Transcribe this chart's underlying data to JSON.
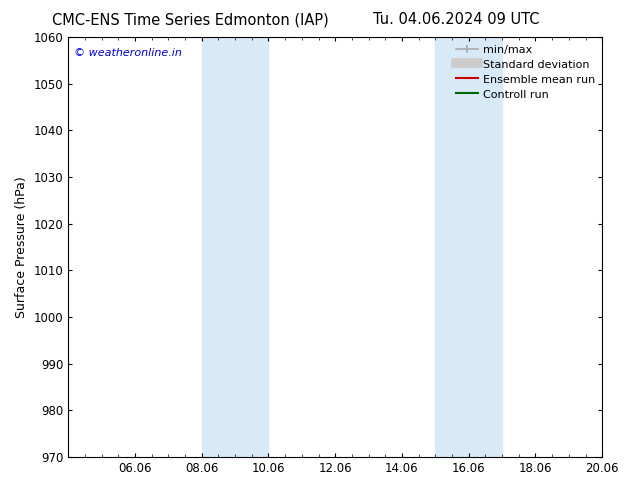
{
  "title_left": "CMC-ENS Time Series Edmonton (IAP)",
  "title_right": "Tu. 04.06.2024 09 UTC",
  "ylabel": "Surface Pressure (hPa)",
  "ylim": [
    970,
    1060
  ],
  "yticks": [
    970,
    980,
    990,
    1000,
    1010,
    1020,
    1030,
    1040,
    1050,
    1060
  ],
  "xtick_labels": [
    "06.06",
    "08.06",
    "10.06",
    "12.06",
    "14.06",
    "16.06",
    "18.06",
    "20.06"
  ],
  "xtick_positions": [
    2,
    4,
    6,
    8,
    10,
    12,
    14,
    16
  ],
  "xlim": [
    0,
    16
  ],
  "shaded_bands": [
    {
      "x_start": 4,
      "x_end": 6
    },
    {
      "x_start": 11,
      "x_end": 13
    }
  ],
  "shaded_color": "#d8eaf8",
  "watermark": "© weatheronline.in",
  "watermark_color": "#0000cc",
  "legend_items": [
    {
      "label": "min/max",
      "color": "#aaaaaa",
      "lw": 1.2,
      "style": "solid",
      "type": "errorbar"
    },
    {
      "label": "Standard deviation",
      "color": "#cccccc",
      "lw": 7,
      "style": "solid",
      "type": "line"
    },
    {
      "label": "Ensemble mean run",
      "color": "#cc0000",
      "lw": 1.5,
      "style": "solid",
      "type": "line"
    },
    {
      "label": "Controll run",
      "color": "#006600",
      "lw": 1.5,
      "style": "solid",
      "type": "line"
    }
  ],
  "bg_color": "#ffffff",
  "title_fontsize": 10.5,
  "ylabel_fontsize": 9,
  "tick_fontsize": 8.5,
  "legend_fontsize": 8
}
